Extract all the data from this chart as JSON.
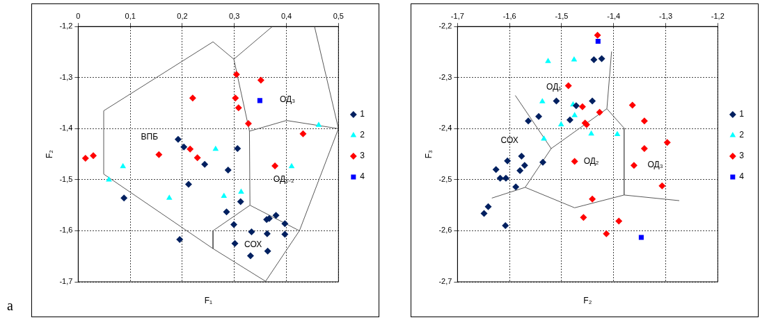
{
  "chart_data": [
    {
      "type": "scatter",
      "xlabel": "F₁",
      "ylabel": "F₂",
      "xlim": [
        0,
        0.5
      ],
      "ylim": [
        -1.7,
        -1.2
      ],
      "xticks": [
        0,
        {
          "value": 0.1,
          "label": "0,1"
        },
        {
          "value": 0.2,
          "label": "0,2"
        },
        {
          "value": 0.3,
          "label": "0,3"
        },
        {
          "value": 0.4,
          "label": "0,4"
        },
        {
          "value": 0.5,
          "label": "0,5"
        }
      ],
      "yticks": [
        {
          "value": -1.7,
          "label": "-1,7"
        },
        {
          "value": -1.6,
          "label": "-1,6"
        },
        {
          "value": -1.5,
          "label": "-1,5"
        },
        {
          "value": -1.4,
          "label": "-1,4"
        },
        {
          "value": -1.3,
          "label": "-1,3"
        },
        {
          "value": -1.2,
          "label": "-1,2"
        }
      ],
      "grid": true,
      "legend": "right",
      "annotations": [
        "a",
        "ВПБ",
        "ОД₃",
        "ОД₁₋₂",
        "СОХ"
      ],
      "series": [
        {
          "name": "1",
          "type": "scatter",
          "marker": "diamond",
          "color": "#002060",
          "x": [
            0.192,
            0.203,
            0.306,
            0.243,
            0.288,
            0.212,
            0.088,
            0.312,
            0.285,
            0.38,
            0.362,
            0.367,
            0.397,
            0.299,
            0.333,
            0.363,
            0.397,
            0.195,
            0.301,
            0.364,
            0.331
          ],
          "values": [
            -1.421,
            -1.436,
            -1.439,
            -1.47,
            -1.481,
            -1.509,
            -1.536,
            -1.543,
            -1.563,
            -1.57,
            -1.578,
            -1.576,
            -1.586,
            -1.588,
            -1.602,
            -1.606,
            -1.607,
            -1.617,
            -1.625,
            -1.64,
            -1.649
          ]
        },
        {
          "name": "2",
          "type": "scatter",
          "marker": "triangle",
          "color": "#00ffff",
          "x": [
            0.462,
            0.264,
            0.086,
            0.41,
            0.059,
            0.175,
            0.28,
            0.313
          ],
          "values": [
            -1.393,
            -1.44,
            -1.474,
            -1.474,
            -1.5,
            -1.536,
            -1.532,
            -1.524
          ]
        },
        {
          "name": "3",
          "type": "scatter",
          "marker": "diamond",
          "color": "#ff0000",
          "x": [
            0.304,
            0.351,
            0.22,
            0.302,
            0.308,
            0.327,
            0.432,
            0.215,
            0.014,
            0.029,
            0.155,
            0.229,
            0.378
          ],
          "values": [
            -1.294,
            -1.305,
            -1.34,
            -1.34,
            -1.359,
            -1.39,
            -1.41,
            -1.44,
            -1.458,
            -1.453,
            -1.451,
            -1.457,
            -1.473
          ]
        },
        {
          "name": "4",
          "type": "scatter",
          "marker": "square",
          "color": "#0000ff",
          "x": [
            0.349
          ],
          "values": [
            -1.345
          ]
        },
        {
          "type": "line",
          "marker": "none",
          "color": "#595959",
          "x": [
            0.049,
            0.049,
            0.259,
            0.299,
            0.373
          ],
          "values": [
            -1.489,
            -1.365,
            -1.23,
            -1.264,
            -1.2
          ]
        },
        {
          "type": "line",
          "marker": "none",
          "color": "#595959",
          "x": [
            0.299,
            0.329,
            0.33,
            0.425,
            0.5,
            0.454
          ],
          "values": [
            -1.264,
            -1.405,
            -1.55,
            -1.6,
            -1.4,
            -1.2
          ]
        },
        {
          "type": "line",
          "marker": "none",
          "color": "#595959",
          "x": [
            0.329,
            0.4,
            0.5
          ],
          "values": [
            -1.405,
            -1.384,
            -1.4
          ]
        },
        {
          "type": "line",
          "marker": "none",
          "color": "#595959",
          "x": [
            0.049,
            0.259,
            0.36,
            0.425
          ],
          "values": [
            -1.489,
            -1.635,
            -1.699,
            -1.6
          ]
        },
        {
          "type": "line",
          "marker": "none",
          "color": "#595959",
          "x": [
            0.33,
            0.259,
            0.259
          ],
          "values": [
            -1.55,
            -1.6,
            -1.635
          ]
        }
      ]
    },
    {
      "type": "scatter",
      "xlabel": "F₂",
      "ylabel": "F₃",
      "xlim": [
        -1.7,
        -1.2
      ],
      "ylim": [
        -2.7,
        -2.2
      ],
      "xticks": [
        {
          "value": -1.7,
          "label": "-1,7"
        },
        {
          "value": -1.6,
          "label": "-1,6"
        },
        {
          "value": -1.5,
          "label": "-1,5"
        },
        {
          "value": -1.4,
          "label": "-1,4"
        },
        {
          "value": -1.3,
          "label": "-1,3"
        },
        {
          "value": -1.2,
          "label": "-1,2"
        }
      ],
      "yticks": [
        {
          "value": -2.7,
          "label": "-2,7"
        },
        {
          "value": -2.6,
          "label": "-2,6"
        },
        {
          "value": -2.5,
          "label": "-2,5"
        },
        {
          "value": -2.4,
          "label": "-2,4"
        },
        {
          "value": -2.3,
          "label": "-2,3"
        },
        {
          "value": -2.2,
          "label": "-2,2"
        }
      ],
      "grid": true,
      "legend": "right",
      "annotations": [
        "ОД₁",
        "СОХ",
        "ОД₂",
        "ОД₃"
      ],
      "series": [
        {
          "name": "1",
          "type": "scatter",
          "marker": "diamond",
          "color": "#002060",
          "x": [
            -1.438,
            -1.423,
            -1.51,
            -1.441,
            -1.472,
            -1.544,
            -1.564,
            -1.484,
            -1.577,
            -1.604,
            -1.536,
            -1.571,
            -1.626,
            -1.58,
            -1.618,
            -1.607,
            -1.588,
            -1.641,
            -1.649,
            -1.608
          ],
          "values": [
            -2.265,
            -2.263,
            -2.346,
            -2.346,
            -2.355,
            -2.376,
            -2.385,
            -2.383,
            -2.454,
            -2.463,
            -2.466,
            -2.472,
            -2.48,
            -2.482,
            -2.497,
            -2.497,
            -2.514,
            -2.553,
            -2.566,
            -2.59
          ]
        },
        {
          "name": "2",
          "type": "scatter",
          "marker": "triangle",
          "color": "#00ffff",
          "x": [
            -1.526,
            -1.476,
            -1.537,
            -1.478,
            -1.475,
            -1.501,
            -1.443,
            -1.393,
            -1.534
          ],
          "values": [
            -2.268,
            -2.265,
            -2.347,
            -2.353,
            -2.374,
            -2.392,
            -2.41,
            -2.411,
            -2.42
          ]
        },
        {
          "name": "3",
          "type": "scatter",
          "marker": "diamond",
          "color": "#ff0000",
          "x": [
            -1.431,
            -1.487,
            -1.46,
            -1.364,
            -1.427,
            -1.455,
            -1.452,
            -1.341,
            -1.297,
            -1.341,
            -1.475,
            -1.361,
            -1.307,
            -1.441,
            -1.458,
            -1.39,
            -1.414
          ],
          "values": [
            -2.217,
            -2.316,
            -2.357,
            -2.354,
            -2.368,
            -2.389,
            -2.392,
            -2.385,
            -2.427,
            -2.439,
            -2.464,
            -2.472,
            -2.512,
            -2.538,
            -2.574,
            -2.581,
            -2.606
          ]
        },
        {
          "name": "4",
          "type": "scatter",
          "marker": "square",
          "color": "#0000ff",
          "x": [
            -1.43,
            -1.347
          ],
          "values": [
            -2.229,
            -2.613
          ]
        },
        {
          "type": "line",
          "marker": "none",
          "color": "#595959",
          "x": [
            -1.589,
            -1.52,
            -1.57,
            -1.634
          ],
          "values": [
            -2.335,
            -2.439,
            -2.515,
            -2.536
          ]
        },
        {
          "type": "line",
          "marker": "none",
          "color": "#595959",
          "x": [
            -1.52,
            -1.413,
            -1.404
          ],
          "values": [
            -2.439,
            -2.361,
            -2.249
          ]
        },
        {
          "type": "line",
          "marker": "none",
          "color": "#595959",
          "x": [
            -1.413,
            -1.38,
            -1.38,
            -1.274
          ],
          "values": [
            -2.361,
            -2.399,
            -2.53,
            -2.541
          ]
        },
        {
          "type": "line",
          "marker": "none",
          "color": "#595959",
          "x": [
            -1.57,
            -1.475,
            -1.38
          ],
          "values": [
            -2.515,
            -2.555,
            -2.53
          ]
        }
      ]
    }
  ]
}
